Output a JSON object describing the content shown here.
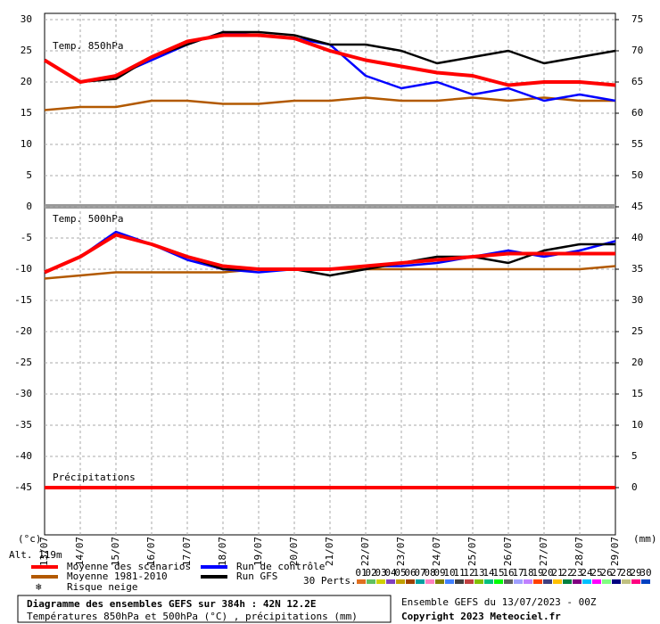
{
  "chart_data": {
    "type": "line",
    "panels": [
      "Temp. 850hPa",
      "Temp. 500hPa",
      "Précipitations"
    ],
    "categories": [
      "13/07",
      "14/07",
      "15/07",
      "16/07",
      "17/07",
      "18/07",
      "19/07",
      "20/07",
      "21/07",
      "22/07",
      "23/07",
      "24/07",
      "25/07",
      "26/07",
      "27/07",
      "28/07",
      "29/07"
    ],
    "ylabel": "(°c)",
    "y2label": "(mm)",
    "altitude": "Alt. 119m",
    "ylim": [
      -52.5,
      31
    ],
    "yticks": [
      30,
      25,
      20,
      15,
      10,
      5,
      0,
      -5,
      -10,
      -15,
      -20,
      -25,
      -30,
      -35,
      -40,
      -45
    ],
    "y2lim": [
      -7.5,
      76
    ],
    "y2ticks": [
      75,
      70,
      65,
      60,
      55,
      50,
      45,
      40,
      35,
      30,
      25,
      20,
      15,
      10,
      5,
      0
    ],
    "grid": true,
    "series": [
      {
        "name": "Moyenne 1981-2010",
        "color": "#b25900",
        "t850": [
          15.5,
          16,
          16,
          17,
          17,
          16.5,
          16.5,
          17,
          17,
          17.5,
          17,
          17,
          17.5,
          17,
          17.5,
          17,
          17
        ],
        "t500": [
          -11.5,
          -11,
          -10.5,
          -10.5,
          -10.5,
          -10.5,
          -10,
          -10,
          -10,
          -10,
          -10,
          -10,
          -10,
          -10,
          -10,
          -10,
          -9.5
        ]
      },
      {
        "name": "Run de contrôle",
        "color": "#0000ff",
        "t850": [
          23.5,
          20,
          21,
          23.5,
          26,
          28,
          27.5,
          27,
          26,
          21,
          19,
          20,
          18,
          19,
          17,
          18,
          17
        ],
        "t500": [
          -10.5,
          -8,
          -4,
          -6,
          -8.5,
          -10,
          -10.5,
          -10,
          -10,
          -9.5,
          -9.5,
          -9,
          -8,
          -7,
          -8,
          -7,
          -5.5
        ]
      },
      {
        "name": "Run GFS",
        "color": "#000000",
        "t850": [
          23.5,
          20,
          20.5,
          24,
          26,
          28,
          28,
          27.5,
          26,
          26,
          25,
          23,
          24,
          25,
          23,
          24,
          25
        ],
        "t500": [
          -10.5,
          -8,
          -4.5,
          -6,
          -8,
          -10,
          -10,
          -10,
          -11,
          -10,
          -9,
          -8,
          -8,
          -9,
          -7,
          -6,
          -6
        ]
      },
      {
        "name": "Moyenne des scénarios",
        "color": "#ff0000",
        "t850": [
          23.5,
          20,
          21,
          24,
          26.5,
          27.5,
          27.5,
          27,
          25,
          23.5,
          22.5,
          21.5,
          21,
          19.5,
          20,
          20,
          19.5
        ],
        "t500": [
          -10.5,
          -8,
          -4.5,
          -6,
          -8,
          -9.5,
          -10,
          -10,
          -10,
          -9.5,
          -9,
          -8.5,
          -8,
          -7.5,
          -7.5,
          -7.5,
          -7.5
        ],
        "precip": [
          0,
          0,
          0,
          0,
          0,
          0,
          0,
          0,
          0,
          0,
          0,
          0,
          0,
          0,
          0,
          0,
          0
        ],
        "axis": "y2"
      }
    ],
    "snow_label": "Risque neige",
    "perts_label": "30 Perts.",
    "perts": [
      {
        "label": "01",
        "color": "#e07020"
      },
      {
        "label": "02",
        "color": "#60c060"
      },
      {
        "label": "03",
        "color": "#d0d000"
      },
      {
        "label": "04",
        "color": "#8040c0"
      },
      {
        "label": "05",
        "color": "#c0a000"
      },
      {
        "label": "06",
        "color": "#a04000"
      },
      {
        "label": "07",
        "color": "#00a0a0"
      },
      {
        "label": "08",
        "color": "#ff80c0"
      },
      {
        "label": "09",
        "color": "#808000"
      },
      {
        "label": "10",
        "color": "#4080ff"
      },
      {
        "label": "11",
        "color": "#404040"
      },
      {
        "label": "12",
        "color": "#c04040"
      },
      {
        "label": "13",
        "color": "#80c000"
      },
      {
        "label": "14",
        "color": "#00c080"
      },
      {
        "label": "15",
        "color": "#00ff00"
      },
      {
        "label": "16",
        "color": "#606060"
      },
      {
        "label": "17",
        "color": "#a0a0ff"
      },
      {
        "label": "18",
        "color": "#c080ff"
      },
      {
        "label": "19",
        "color": "#ff4000"
      },
      {
        "label": "20",
        "color": "#404080"
      },
      {
        "label": "21",
        "color": "#ffc000"
      },
      {
        "label": "22",
        "color": "#008040"
      },
      {
        "label": "23",
        "color": "#800080"
      },
      {
        "label": "24",
        "color": "#00c0ff"
      },
      {
        "label": "25",
        "color": "#ff00ff"
      },
      {
        "label": "26",
        "color": "#80ff80"
      },
      {
        "label": "27",
        "color": "#000080"
      },
      {
        "label": "28",
        "color": "#c0c080"
      },
      {
        "label": "29",
        "color": "#ff0080"
      },
      {
        "label": "30",
        "color": "#0040c0"
      }
    ],
    "footer": {
      "title": "Diagramme des ensembles GEFS sur 384h : 42N 12.2E",
      "subtitle": "Températures 850hPa et 500hPa (°C) , précipitations (mm)",
      "run": "Ensemble GEFS du 13/07/2023 - 00Z",
      "copyright": "Copyright 2023 Meteociel.fr"
    }
  }
}
